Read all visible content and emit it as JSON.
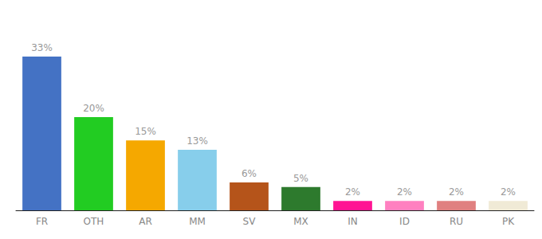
{
  "chart_data": {
    "type": "bar",
    "categories": [
      "FR",
      "OTH",
      "AR",
      "MM",
      "SV",
      "MX",
      "IN",
      "ID",
      "RU",
      "PK"
    ],
    "values": [
      33,
      20,
      15,
      13,
      6,
      5,
      2,
      2,
      2,
      2
    ],
    "value_labels": [
      "33%",
      "20%",
      "15%",
      "13%",
      "6%",
      "5%",
      "2%",
      "2%",
      "2%",
      "2%"
    ],
    "colors": [
      "#4472c4",
      "#22cc22",
      "#f5a800",
      "#87ceeb",
      "#b5541a",
      "#2d7a2d",
      "#ff1493",
      "#ff80c0",
      "#e08080",
      "#f0ead6"
    ],
    "ylim": [
      0,
      40
    ],
    "data_labels": true,
    "tick_labels": "x",
    "grid": false
  }
}
